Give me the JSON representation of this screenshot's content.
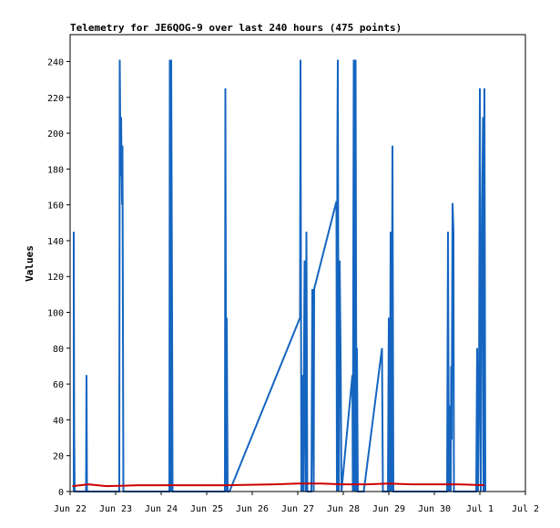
{
  "chart_data": {
    "type": "line",
    "title": "Telemetry for JE6QOG-9 over last 240 hours (475 points)",
    "xlabel": "",
    "ylabel": "Values",
    "x_ticks": [
      "Jun 22",
      "Jun 23",
      "Jun 24",
      "Jun 25",
      "Jun 26",
      "Jun 27",
      "Jun 28",
      "Jun 29",
      "Jun 30",
      "Jul 1",
      "Jul 2"
    ],
    "xlim": [
      0,
      10
    ],
    "ylim": [
      0,
      255
    ],
    "y_ticks": [
      0,
      20,
      40,
      60,
      80,
      100,
      120,
      140,
      160,
      180,
      200,
      220,
      240
    ],
    "grid": false,
    "legend": "none",
    "x_unit": "days from Jun 22 00:00",
    "series": [
      {
        "color": "#1565c0",
        "points": [
          [
            0.08,
            0
          ],
          [
            0.08,
            145
          ],
          [
            0.09,
            32
          ],
          [
            0.1,
            0
          ],
          [
            0.35,
            0
          ],
          [
            0.36,
            65
          ],
          [
            0.37,
            0
          ],
          [
            1.08,
            0
          ],
          [
            1.09,
            241
          ],
          [
            1.11,
            176
          ],
          [
            1.12,
            209
          ],
          [
            1.14,
            160
          ],
          [
            1.15,
            193
          ],
          [
            1.17,
            0
          ],
          [
            2.18,
            0
          ],
          [
            2.19,
            241
          ],
          [
            2.21,
            0
          ],
          [
            2.22,
            241
          ],
          [
            2.24,
            97
          ],
          [
            2.25,
            0
          ],
          [
            3.4,
            0
          ],
          [
            3.41,
            225
          ],
          [
            3.43,
            0
          ],
          [
            3.44,
            97
          ],
          [
            3.46,
            0
          ],
          [
            3.5,
            0
          ],
          [
            5.05,
            97
          ],
          [
            5.06,
            241
          ],
          [
            5.08,
            0
          ],
          [
            5.1,
            65
          ],
          [
            5.12,
            0
          ],
          [
            5.15,
            129
          ],
          [
            5.17,
            0
          ],
          [
            5.19,
            145
          ],
          [
            5.21,
            0
          ],
          [
            5.3,
            0
          ],
          [
            5.32,
            113
          ],
          [
            5.35,
            0
          ],
          [
            5.36,
            113
          ],
          [
            5.85,
            162
          ],
          [
            5.86,
            0
          ],
          [
            5.87,
            193
          ],
          [
            5.88,
            241
          ],
          [
            5.9,
            0
          ],
          [
            5.92,
            129
          ],
          [
            5.94,
            80
          ],
          [
            5.96,
            0
          ],
          [
            6.2,
            65
          ],
          [
            6.21,
            0
          ],
          [
            6.23,
            241
          ],
          [
            6.25,
            0
          ],
          [
            6.27,
            241
          ],
          [
            6.29,
            0
          ],
          [
            6.3,
            80
          ],
          [
            6.32,
            0
          ],
          [
            6.45,
            0
          ],
          [
            6.85,
            80
          ],
          [
            6.87,
            0
          ],
          [
            6.98,
            0
          ],
          [
            7.0,
            97
          ],
          [
            7.02,
            0
          ],
          [
            7.04,
            145
          ],
          [
            7.06,
            0
          ],
          [
            7.08,
            193
          ],
          [
            7.1,
            0
          ],
          [
            8.28,
            0
          ],
          [
            8.3,
            145
          ],
          [
            8.32,
            0
          ],
          [
            8.34,
            48
          ],
          [
            8.36,
            0
          ],
          [
            8.37,
            70
          ],
          [
            8.38,
            29
          ],
          [
            8.4,
            161
          ],
          [
            8.42,
            145
          ],
          [
            8.43,
            0
          ],
          [
            8.92,
            0
          ],
          [
            8.94,
            80
          ],
          [
            8.96,
            0
          ],
          [
            8.98,
            48
          ],
          [
            9.0,
            225
          ],
          [
            9.02,
            0
          ],
          [
            9.05,
            160
          ],
          [
            9.07,
            209
          ],
          [
            9.08,
            0
          ],
          [
            9.1,
            225
          ],
          [
            9.12,
            0
          ]
        ]
      },
      {
        "color": "#cc0000",
        "points": [
          [
            0.05,
            3
          ],
          [
            0.4,
            4
          ],
          [
            0.8,
            3
          ],
          [
            1.5,
            3.5
          ],
          [
            2.5,
            3.5
          ],
          [
            3.5,
            3.5
          ],
          [
            4.5,
            4
          ],
          [
            5.0,
            4.5
          ],
          [
            5.5,
            4.5
          ],
          [
            6.0,
            4
          ],
          [
            6.5,
            4
          ],
          [
            7.0,
            4.5
          ],
          [
            7.5,
            4
          ],
          [
            8.5,
            4
          ],
          [
            9.1,
            3.5
          ]
        ]
      },
      {
        "color": "#000000",
        "points": [
          [
            0.05,
            0
          ],
          [
            9.12,
            0
          ]
        ]
      }
    ]
  }
}
